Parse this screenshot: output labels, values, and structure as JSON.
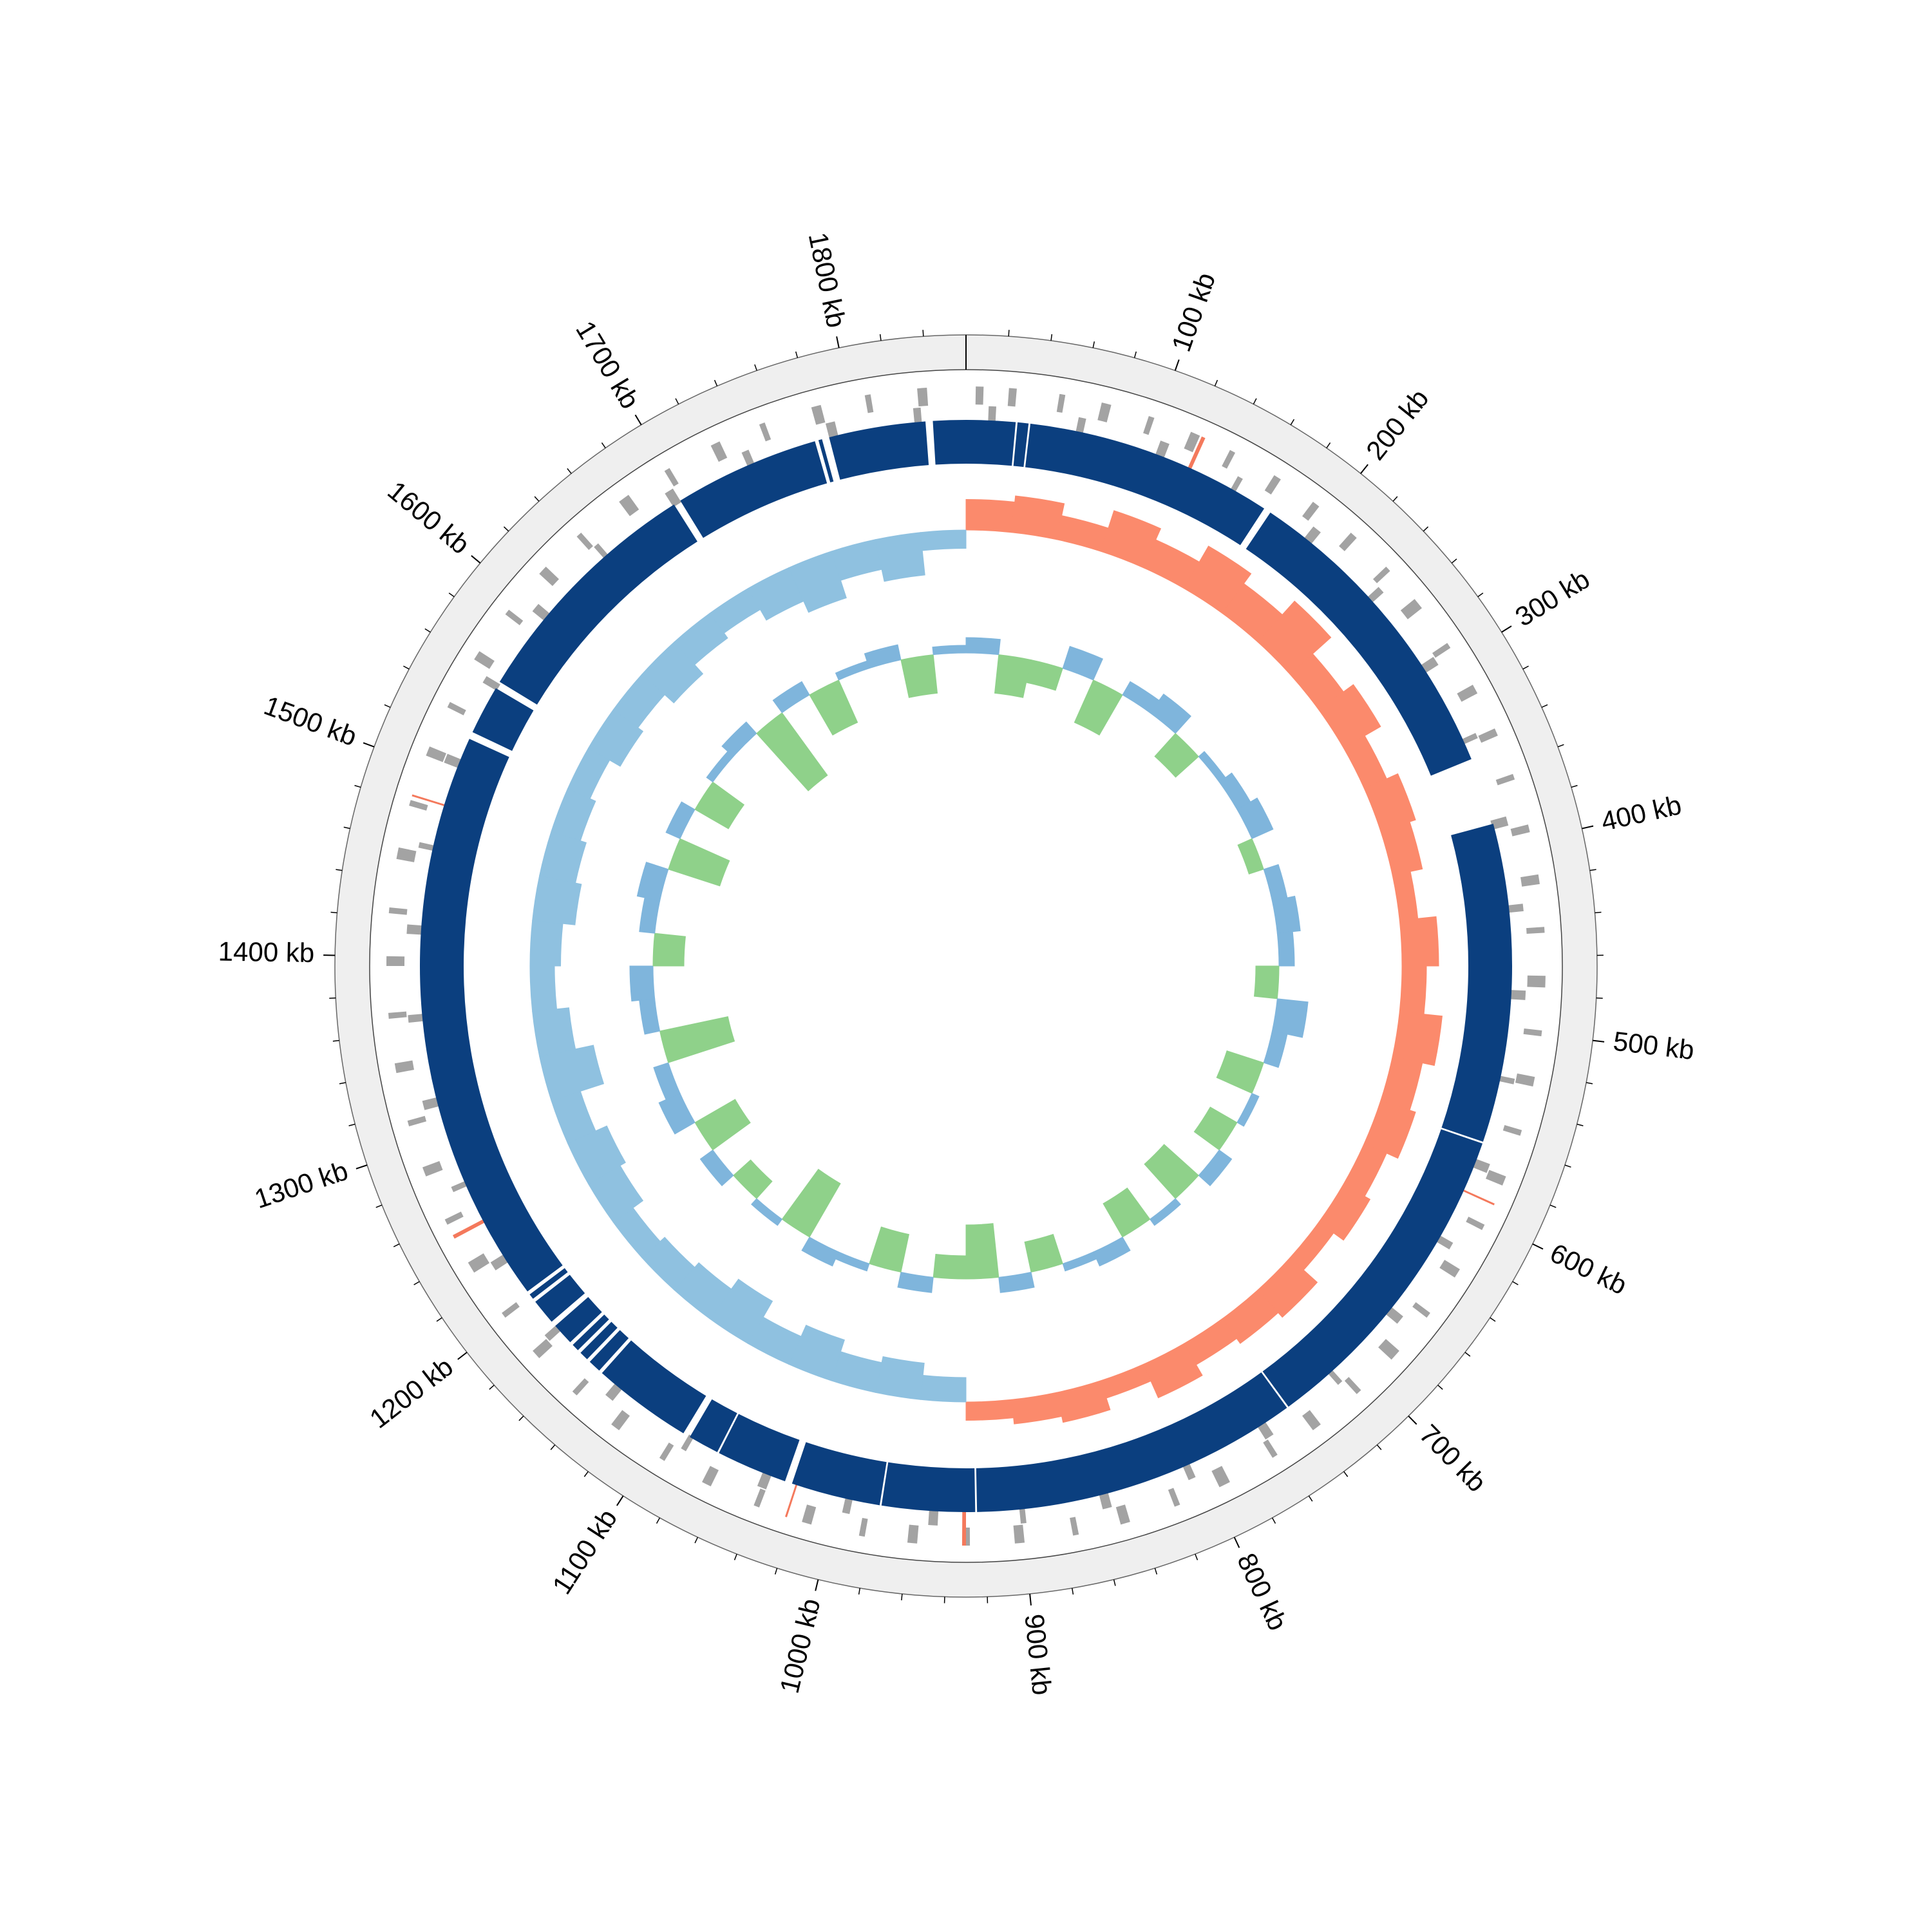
{
  "chart_data": {
    "type": "circular_genome",
    "xlim": [
      0,
      1860
    ],
    "xticks": [
      {
        "value": 100,
        "label": "100 kb"
      },
      {
        "value": 200,
        "label": "200 kb"
      },
      {
        "value": 300,
        "label": "300 kb"
      },
      {
        "value": 400,
        "label": "400 kb"
      },
      {
        "value": 500,
        "label": "500 kb"
      },
      {
        "value": 600,
        "label": "600 kb"
      },
      {
        "value": 700,
        "label": "700 kb"
      },
      {
        "value": 800,
        "label": "800 kb"
      },
      {
        "value": 900,
        "label": "900 kb"
      },
      {
        "value": 1000,
        "label": "1000 kb"
      },
      {
        "value": 1100,
        "label": "1100 kb"
      },
      {
        "value": 1200,
        "label": "1200 kb"
      },
      {
        "value": 1300,
        "label": "1300 kb"
      },
      {
        "value": 1400,
        "label": "1400 kb"
      },
      {
        "value": 1500,
        "label": "1500 kb"
      },
      {
        "value": 1600,
        "label": "1600 kb"
      },
      {
        "value": 1700,
        "label": "1700 kb"
      },
      {
        "value": 1800,
        "label": "1800 kb"
      }
    ],
    "minor_xticks": [
      20,
      40,
      60,
      80,
      120,
      140,
      160,
      180,
      220,
      240,
      260,
      280,
      320,
      340,
      360,
      380,
      420,
      440,
      460,
      480,
      520,
      540,
      560,
      580,
      620,
      640,
      660,
      680,
      720,
      740,
      760,
      780,
      820,
      840,
      860,
      880,
      920,
      940,
      960,
      980,
      1020,
      1040,
      1060,
      1080,
      1120,
      1140,
      1160,
      1180,
      1220,
      1240,
      1260,
      1280,
      1320,
      1340,
      1360,
      1380,
      1420,
      1440,
      1460,
      1480,
      1520,
      1540,
      1560,
      1580,
      1620,
      1640,
      1660,
      1680,
      1720,
      1740,
      1760,
      1780,
      1820,
      1840
    ],
    "contig_color": "#0b3f7f",
    "contigs": [
      [
        0,
        27
      ],
      [
        28,
        34
      ],
      [
        35,
        171
      ],
      [
        175,
        350
      ],
      [
        387,
        562
      ],
      [
        563,
        743
      ],
      [
        744,
        924
      ],
      [
        925,
        976
      ],
      [
        977,
        1026
      ],
      [
        1030,
        1069
      ],
      [
        1070,
        1087
      ],
      [
        1091,
        1146
      ],
      [
        1148,
        1155
      ],
      [
        1157,
        1162
      ],
      [
        1164,
        1168
      ],
      [
        1170,
        1182
      ],
      [
        1185,
        1199
      ],
      [
        1201,
        1204
      ],
      [
        1206,
        1522
      ],
      [
        1526,
        1553
      ],
      [
        1557,
        1693
      ],
      [
        1697,
        1777
      ],
      [
        1779,
        1781
      ],
      [
        1785,
        1838
      ],
      [
        1842,
        1860
      ]
    ],
    "gene_color": "#a3a3a3",
    "forward_genes": [
      [
        5,
        9
      ],
      [
        22,
        26
      ],
      [
        48,
        51
      ],
      [
        70,
        75
      ],
      [
        95,
        98
      ],
      [
        118,
        123
      ],
      [
        140,
        143
      ],
      [
        166,
        170
      ],
      [
        190,
        194
      ],
      [
        215,
        219
      ],
      [
        240,
        243
      ],
      [
        262,
        268
      ],
      [
        290,
        293
      ],
      [
        315,
        320
      ],
      [
        340,
        344
      ],
      [
        365,
        368
      ],
      [
        392,
        396
      ],
      [
        418,
        423
      ],
      [
        445,
        448
      ],
      [
        470,
        476
      ],
      [
        498,
        501
      ],
      [
        522,
        527
      ],
      [
        550,
        553
      ],
      [
        575,
        580
      ],
      [
        602,
        605
      ],
      [
        628,
        633
      ],
      [
        655,
        658
      ],
      [
        680,
        686
      ],
      [
        708,
        711
      ],
      [
        735,
        740
      ],
      [
        762,
        765
      ],
      [
        790,
        796
      ],
      [
        818,
        821
      ],
      [
        845,
        850
      ],
      [
        872,
        875
      ],
      [
        900,
        905
      ],
      [
        928,
        931
      ],
      [
        955,
        960
      ],
      [
        982,
        985
      ],
      [
        1010,
        1015
      ],
      [
        1038,
        1041
      ],
      [
        1065,
        1070
      ],
      [
        1092,
        1095
      ],
      [
        1120,
        1125
      ],
      [
        1148,
        1151
      ],
      [
        1175,
        1180
      ],
      [
        1202,
        1205
      ],
      [
        1230,
        1236
      ],
      [
        1258,
        1261
      ],
      [
        1285,
        1290
      ],
      [
        1312,
        1315
      ],
      [
        1340,
        1345
      ],
      [
        1368,
        1371
      ],
      [
        1395,
        1400
      ],
      [
        1422,
        1425
      ],
      [
        1450,
        1456
      ],
      [
        1478,
        1481
      ],
      [
        1505,
        1510
      ],
      [
        1532,
        1535
      ],
      [
        1560,
        1565
      ],
      [
        1588,
        1591
      ],
      [
        1615,
        1620
      ],
      [
        1642,
        1645
      ],
      [
        1670,
        1676
      ],
      [
        1698,
        1701
      ],
      [
        1725,
        1730
      ],
      [
        1752,
        1755
      ],
      [
        1780,
        1785
      ],
      [
        1808,
        1811
      ],
      [
        1835,
        1840
      ]
    ],
    "reverse_genes": [
      [
        12,
        16
      ],
      [
        60,
        64
      ],
      [
        105,
        110
      ],
      [
        150,
        153
      ],
      [
        198,
        203
      ],
      [
        245,
        249
      ],
      [
        292,
        297
      ],
      [
        338,
        341
      ],
      [
        385,
        390
      ],
      [
        432,
        436
      ],
      [
        478,
        483
      ],
      [
        525,
        528
      ],
      [
        572,
        577
      ],
      [
        618,
        622
      ],
      [
        665,
        670
      ],
      [
        712,
        715
      ],
      [
        758,
        763
      ],
      [
        805,
        809
      ],
      [
        852,
        857
      ],
      [
        898,
        901
      ],
      [
        945,
        950
      ],
      [
        992,
        996
      ],
      [
        1038,
        1043
      ],
      [
        1085,
        1088
      ],
      [
        1132,
        1137
      ],
      [
        1178,
        1182
      ],
      [
        1225,
        1230
      ],
      [
        1272,
        1275
      ],
      [
        1318,
        1323
      ],
      [
        1365,
        1369
      ],
      [
        1412,
        1417
      ],
      [
        1458,
        1461
      ],
      [
        1505,
        1510
      ],
      [
        1552,
        1556
      ],
      [
        1598,
        1603
      ],
      [
        1645,
        1648
      ],
      [
        1692,
        1697
      ],
      [
        1738,
        1742
      ],
      [
        1785,
        1790
      ],
      [
        1832,
        1836
      ]
    ],
    "rna_color": "#f4795c",
    "rna_genes": [
      [
        124,
        126
      ],
      [
        590,
        591
      ],
      [
        930,
        932
      ],
      [
        1023,
        1024
      ],
      [
        1250,
        1252
      ],
      [
        1483,
        1484
      ]
    ],
    "gc_skew": {
      "positive_color": "#fb8a6c",
      "negative_color": "#8fc1e0",
      "x": [
        0,
        31,
        62,
        93,
        124,
        155,
        186,
        217,
        248,
        279,
        310,
        341,
        372,
        403,
        434,
        465,
        496,
        527,
        558,
        589,
        620,
        651,
        682,
        713,
        744,
        775,
        806,
        837,
        868,
        899,
        930,
        961,
        992,
        1023,
        1054,
        1085,
        1116,
        1147,
        1178,
        1209,
        1240,
        1271,
        1302,
        1333,
        1364,
        1395,
        1426,
        1457,
        1488,
        1519,
        1550,
        1581,
        1612,
        1643,
        1674,
        1705,
        1736,
        1767,
        1798,
        1829
      ],
      "values": [
        0.05,
        0.06,
        0.04,
        0.07,
        0.05,
        0.08,
        0.06,
        0.09,
        0.05,
        0.07,
        0.04,
        0.06,
        0.05,
        0.03,
        0.06,
        0.04,
        0.07,
        0.05,
        0.06,
        0.04,
        0.05,
        0.03,
        0.06,
        0.05,
        0.04,
        0.06,
        0.03,
        0.05,
        0.04,
        0.03,
        -0.04,
        -0.06,
        -0.05,
        -0.07,
        -0.05,
        -0.08,
        -0.06,
        -0.05,
        -0.04,
        -0.06,
        -0.07,
        -0.05,
        -0.09,
        -0.06,
        -0.04,
        -0.05,
        -0.07,
        -0.06,
        -0.05,
        -0.04,
        -0.06,
        -0.05,
        -0.07,
        -0.05,
        -0.04,
        -0.06,
        -0.08,
        -0.05,
        -0.07,
        -0.03
      ]
    },
    "gc_content": {
      "positive_color": "#7fb5dc",
      "negative_color": "#8fd18a",
      "x": [
        0,
        31,
        62,
        93,
        124,
        155,
        186,
        217,
        248,
        279,
        310,
        341,
        372,
        403,
        434,
        465,
        496,
        527,
        558,
        589,
        620,
        651,
        682,
        713,
        744,
        775,
        806,
        837,
        868,
        899,
        930,
        961,
        992,
        1023,
        1054,
        1085,
        1116,
        1147,
        1178,
        1209,
        1240,
        1271,
        1302,
        1333,
        1364,
        1395,
        1426,
        1457,
        1488,
        1519,
        1550,
        1581,
        1612,
        1643,
        1674,
        1705,
        1736,
        1767,
        1798,
        1829
      ],
      "values": [
        0.02,
        -0.05,
        -0.03,
        0.03,
        -0.06,
        0.02,
        0.03,
        -0.04,
        0.01,
        0.02,
        0.03,
        -0.02,
        0.02,
        0.03,
        0.02,
        -0.03,
        0.04,
        0.02,
        -0.05,
        0.01,
        -0.04,
        0.02,
        -0.06,
        0.01,
        -0.05,
        0.02,
        0.01,
        -0.04,
        0.02,
        -0.07,
        -0.03,
        0.02,
        -0.05,
        0.01,
        0.02,
        -0.08,
        0.01,
        -0.03,
        0.02,
        -0.06,
        0.03,
        0.02,
        -0.09,
        0.02,
        0.03,
        -0.04,
        0.02,
        0.03,
        -0.07,
        0.02,
        -0.05,
        0.01,
        0.02,
        -0.1,
        0.02,
        -0.06,
        0.01,
        0.02,
        -0.05,
        0.01
      ]
    }
  }
}
